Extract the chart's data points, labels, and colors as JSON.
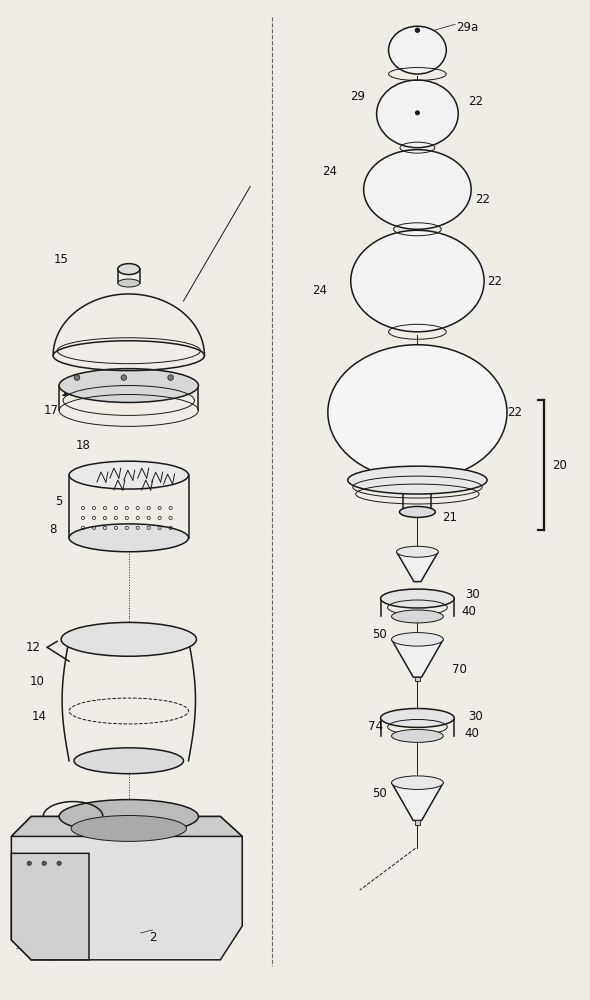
{
  "bg_color": "#f0ece6",
  "line_color": "#1a1a1a",
  "label_color": "#111111"
}
